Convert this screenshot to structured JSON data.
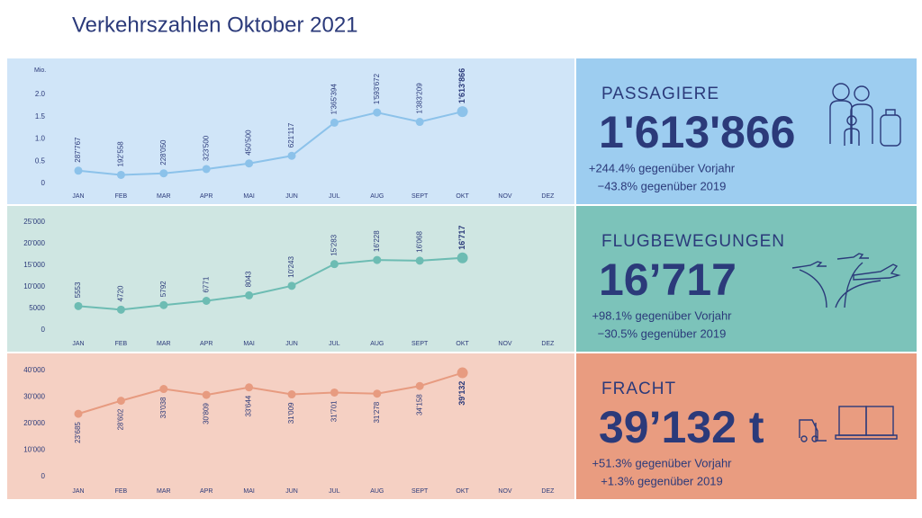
{
  "title": "Verkehrszahlen Oktober 2021",
  "chart_data": [
    {
      "type": "line",
      "name": "PASSAGIERE",
      "headline": "1'613'866",
      "changes": [
        "+244.4% gegenüber Vorjahr",
        "−43.8% gegenüber 2019"
      ],
      "y_unit": "Mio.",
      "categories": [
        "JAN",
        "FEB",
        "MAR",
        "APR",
        "MAI",
        "JUN",
        "JUL",
        "AUG",
        "SEPT",
        "OKT",
        "NOV",
        "DEZ"
      ],
      "values": [
        0.287767,
        0.192558,
        0.22805,
        0.3235,
        0.4505,
        0.621117,
        1.365394,
        1.593672,
        1.383209,
        1.613866,
        null,
        null
      ],
      "value_labels": [
        "287'767",
        "192'558",
        "228'050",
        "323'500",
        "450'500",
        "621'117",
        "1'365'394",
        "1'593'672",
        "1'383'209",
        "1'613'866",
        null,
        null
      ],
      "ylim": [
        0,
        2
      ],
      "yticks": [
        0,
        0.5,
        {
          "value": 1,
          "label": "1.0"
        },
        1.5,
        {
          "value": 2,
          "label": "2.0"
        }
      ],
      "color": "#8cc2ea",
      "panel_color": "#d0e5f8",
      "stat_color": "#9dcdf0"
    },
    {
      "type": "line",
      "name": "FLUGBEWEGUNGEN",
      "headline": "16’717",
      "changes": [
        "+98.1% gegenüber Vorjahr",
        "−30.5% gegenüber 2019"
      ],
      "categories": [
        "JAN",
        "FEB",
        "MAR",
        "APR",
        "MAI",
        "JUN",
        "JUL",
        "AUG",
        "SEPT",
        "OKT",
        "NOV",
        "DEZ"
      ],
      "values": [
        5553,
        4720,
        5792,
        6771,
        8043,
        10243,
        15283,
        16228,
        16068,
        16717,
        null,
        null
      ],
      "value_labels": [
        "5553",
        "4720",
        "5792",
        "6771",
        "8043",
        "10'243",
        "15'283",
        "16'228",
        "16'068",
        "16'717",
        null,
        null
      ],
      "ylim": [
        0,
        25000
      ],
      "yticks": [
        0,
        5000,
        {
          "value": 10000,
          "label": "10'000"
        },
        {
          "value": 15000,
          "label": "15'000"
        },
        {
          "value": 20000,
          "label": "20'000"
        },
        {
          "value": 25000,
          "label": "25'000"
        }
      ],
      "color": "#6dbcb3",
      "panel_color": "#cfe6e2",
      "stat_color": "#7cc3ba"
    },
    {
      "type": "line",
      "name": "FRACHT",
      "headline": "39’132 t",
      "changes": [
        "+51.3% gegenüber Vorjahr",
        "+1.3% gegenüber 2019"
      ],
      "categories": [
        "JAN",
        "FEB",
        "MAR",
        "APR",
        "MAI",
        "JUN",
        "JUL",
        "AUG",
        "SEPT",
        "OKT",
        "NOV",
        "DEZ"
      ],
      "values": [
        23685,
        28602,
        33038,
        30809,
        33644,
        31009,
        31701,
        31278,
        34158,
        39132,
        null,
        null
      ],
      "value_labels": [
        "23'685",
        "28'602",
        "33'038",
        "30'809",
        "33'644",
        "31'009",
        "31'701",
        "31'278",
        "34'158",
        "39'132",
        null,
        null
      ],
      "ylim": [
        0,
        40000
      ],
      "yticks": [
        0,
        {
          "value": 10000,
          "label": "10'000"
        },
        {
          "value": 20000,
          "label": "20'000"
        },
        {
          "value": 30000,
          "label": "30'000"
        },
        {
          "value": 40000,
          "label": "40'000"
        }
      ],
      "color": "#e79b80",
      "panel_color": "#f5d0c3",
      "stat_color": "#e99c80"
    }
  ]
}
